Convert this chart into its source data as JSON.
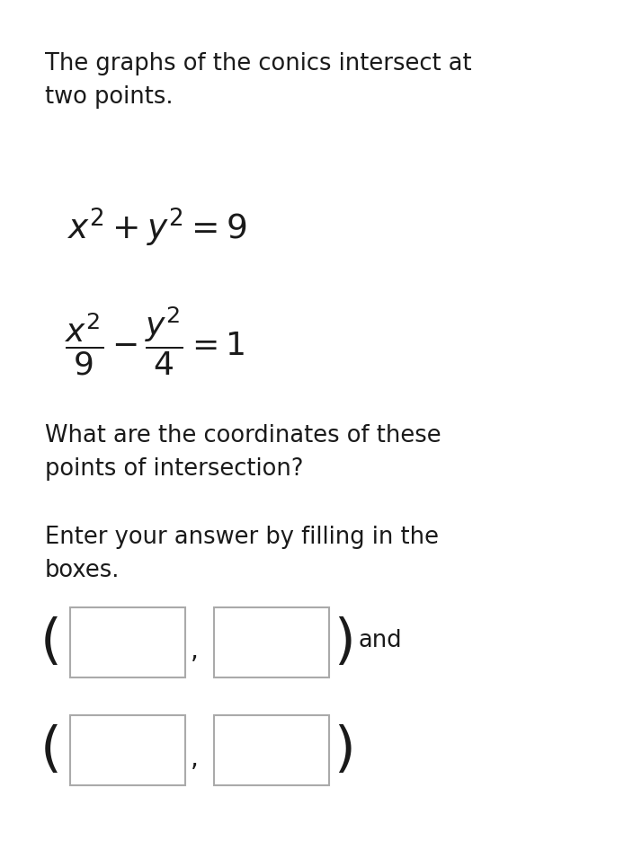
{
  "background_color": "#ffffff",
  "text_color": "#1a1a1a",
  "line1": "The graphs of the conics intersect at",
  "line2": "two points.",
  "question_line1": "What are the coordinates of these",
  "question_line2": "points of intersection?",
  "instruction_line1": "Enter your answer by filling in the",
  "instruction_line2": "boxes.",
  "body_fontsize": 18.5,
  "eq1_fontsize": 27,
  "eq2_fontsize": 26,
  "paren_fontsize": 44,
  "and_fontsize": 18.5,
  "box_color": "#ffffff",
  "box_edge_color": "#aaaaaa",
  "box_edge_width": 1.5
}
